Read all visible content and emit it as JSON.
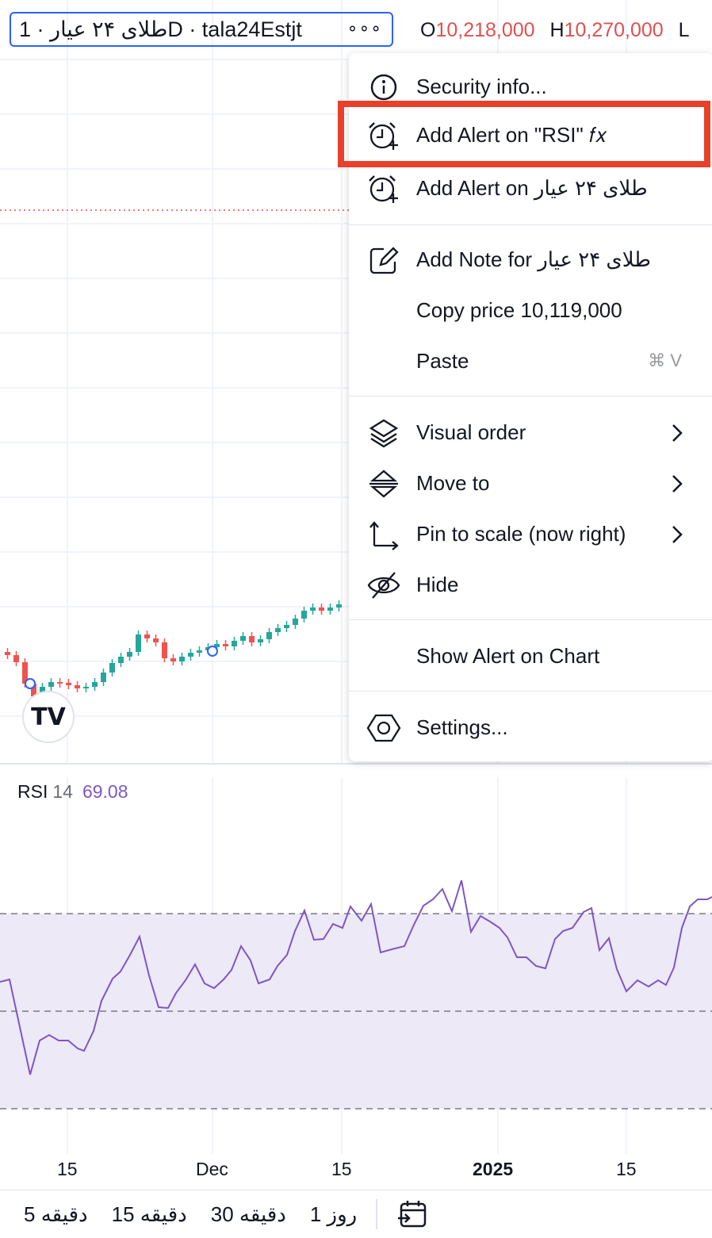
{
  "header": {
    "symbol_title": "طلای ۲۴ عیار · 1D · tala24Estjt",
    "more_glyph": "∘∘∘",
    "ohlc": {
      "o_label": "O",
      "o_value": "10,218,000",
      "h_label": "H",
      "h_value": "10,270,000",
      "l_label": "L"
    }
  },
  "indicator": {
    "name": "RSI",
    "length": "14",
    "value": "69.08",
    "color": "#7e57c2"
  },
  "x_axis": {
    "labels": [
      "15",
      "Dec",
      "15",
      "2025",
      "15"
    ]
  },
  "timeframes": [
    "5 دقیقه",
    "15 دقیقه",
    "30 دقیقه",
    "1 روز"
  ],
  "logo_text": "TV",
  "context_menu": {
    "security_info": "Security info...",
    "add_alert_rsi": "Add Alert on \"RSI\" 𝑓𝑥",
    "add_alert_symbol": "Add Alert on طلای ۲۴ عیار",
    "add_note": "Add Note for طلای ۲۴ عیار",
    "copy_price": "Copy price 10,119,000",
    "paste": "Paste",
    "paste_shortcut": "⌘ V",
    "visual_order": "Visual order",
    "move_to": "Move to",
    "pin_to_scale": "Pin to scale (now right)",
    "hide": "Hide",
    "show_alert": "Show Alert on Chart",
    "settings": "Settings..."
  },
  "colors": {
    "up": "#26a69a",
    "down": "#ef5350",
    "accent": "#2962ff",
    "highlight": "#e8402a",
    "rsi_band": "#ede9f7"
  }
}
